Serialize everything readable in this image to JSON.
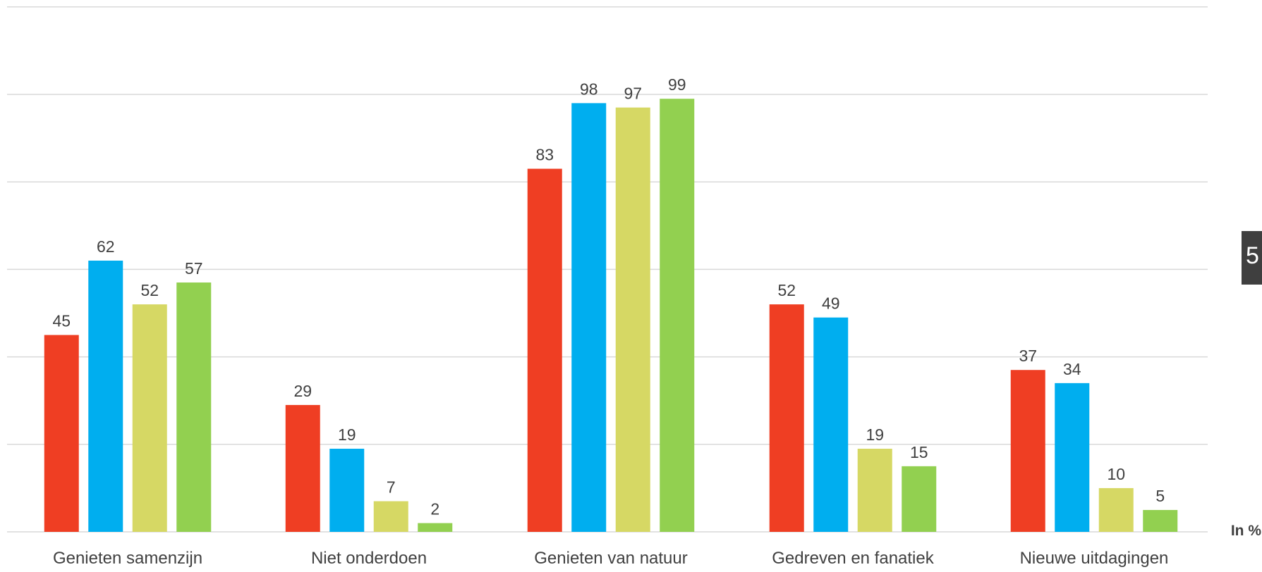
{
  "chart_data": {
    "type": "bar",
    "title": "",
    "xlabel": "",
    "ylabel": "",
    "unit_label": "In %",
    "ylim": [
      0,
      100
    ],
    "grid": true,
    "categories": [
      "Genieten samenzijn",
      "Niet onderdoen",
      "Genieten van natuur",
      "Gedreven en fanatiek",
      "Nieuwe uitdagingen"
    ],
    "series": [
      {
        "color": "#ef3e23",
        "values": [
          45,
          29,
          83,
          52,
          37
        ]
      },
      {
        "color": "#00aeef",
        "values": [
          62,
          19,
          98,
          49,
          34
        ]
      },
      {
        "color": "#d6d864",
        "values": [
          52,
          7,
          97,
          19,
          10
        ]
      },
      {
        "color": "#92d050",
        "values": [
          57,
          2,
          99,
          15,
          5
        ]
      }
    ]
  },
  "side_tab": {
    "text": "5"
  }
}
